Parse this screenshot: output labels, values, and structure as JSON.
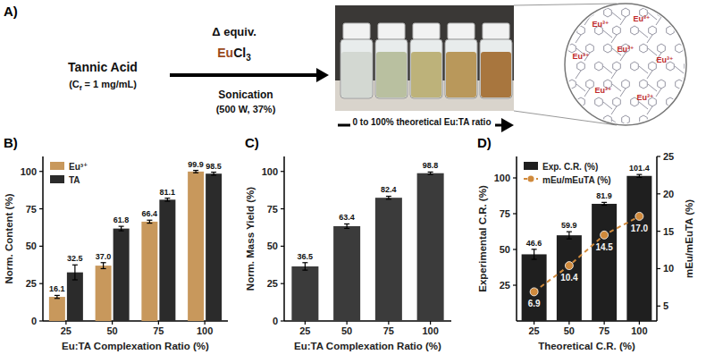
{
  "scheme": {
    "panel_label": "A)",
    "reactant": "Tannic Acid",
    "conc_open": "(C",
    "conc_sub": "f",
    "conc_close": " = 1 mg/mL)",
    "equiv": "Δ equiv.",
    "reagent_metal": "Eu",
    "reagent_rest": "Cl",
    "reagent_sub": "3",
    "condition": "Sonication",
    "condition_detail": "(500 W, 37%)",
    "photo_caption": "0 to 100% theoretical Eu:TA ratio",
    "network_label": "Eu³⁺"
  },
  "chart_data": [
    {
      "panel_label": "B)",
      "type": "bar",
      "x_label": "Eu:TA Complexation Ratio (%)",
      "y_label": "Norm. Content (%)",
      "categories": [
        "25",
        "50",
        "75",
        "100"
      ],
      "series": [
        {
          "name": "Eu³⁺",
          "color": "#c8985c",
          "values": [
            16.1,
            37.0,
            66.4,
            99.9
          ],
          "value_labels": [
            "16.1",
            "37.0",
            "66.4",
            "99.9"
          ],
          "errors": [
            1.0,
            2.0,
            1.0,
            0.8
          ]
        },
        {
          "name": "TA",
          "color": "#2b2b2b",
          "values": [
            32.5,
            61.8,
            81.1,
            98.5
          ],
          "value_labels": [
            "32.5",
            "61.8",
            "81.1",
            "98.5"
          ],
          "errors": [
            5.0,
            1.5,
            1.0,
            1.0
          ]
        }
      ],
      "ylim": [
        0,
        110
      ],
      "yticks": [
        0,
        25,
        50,
        75,
        100
      ],
      "legend": "top-left",
      "data_labels": true
    },
    {
      "panel_label": "C)",
      "type": "bar",
      "x_label": "Eu:TA Complexation Ratio (%)",
      "y_label": "Norm. Mass Yield (%)",
      "categories": [
        "25",
        "50",
        "75",
        "100"
      ],
      "values": [
        36.5,
        63.4,
        82.4,
        98.8
      ],
      "errors": [
        2.5,
        1.5,
        1.0,
        0.8
      ],
      "color": "#3b3b3b",
      "ylim": [
        0,
        110
      ],
      "yticks": [
        0,
        25,
        50,
        75,
        100
      ],
      "data_labels": true
    },
    {
      "panel_label": "D)",
      "type": "bar",
      "x_label": "Theoretical C.R. (%)",
      "y_label": "Experimental C.R. (%)",
      "y2_label": "mEu/mEuTA (%)",
      "categories": [
        "25",
        "50",
        "75",
        "100"
      ],
      "series": [
        {
          "name": "Exp. C.R. (%)",
          "type": "bar",
          "color": "#1f1f1f",
          "values": [
            46.6,
            59.9,
            81.9,
            101.4
          ],
          "errors": [
            3.5,
            2.5,
            1.0,
            1.0
          ]
        },
        {
          "name": "mEu/mEuTA (%)",
          "type": "line",
          "axis": "y2",
          "color": "#d08a3c",
          "marker": "circle",
          "line_style": "dashed",
          "values": [
            6.9,
            10.4,
            14.5,
            17.0
          ],
          "value_labels": [
            "6.9",
            "10.4",
            "14.5",
            "17.0"
          ]
        }
      ],
      "ylim": [
        0,
        115
      ],
      "yticks": [
        25,
        50,
        75,
        100
      ],
      "y2lim": [
        3,
        25
      ],
      "y2ticks": [
        5,
        10,
        15,
        20,
        25
      ],
      "legend": "top-left",
      "data_labels": true
    }
  ]
}
